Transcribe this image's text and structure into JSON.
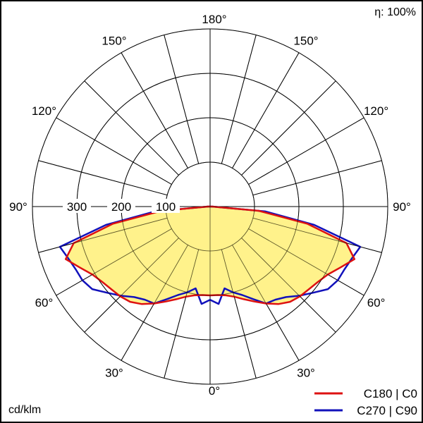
{
  "chart_data": {
    "type": "polar",
    "unit_label": "cd/klm",
    "efficiency_label": "η: 100%",
    "radial_ticks": [
      100,
      200,
      300
    ],
    "rlim": [
      0,
      400
    ],
    "angle_labels": {
      "top": "180°",
      "left": [
        "150°",
        "120°",
        "90°",
        "60°",
        "30°"
      ],
      "right": [
        "150°",
        "120°",
        "90°",
        "60°",
        "30°"
      ],
      "bottom": "0°"
    },
    "grid": true,
    "legend_position": "bottom-right",
    "series": [
      {
        "name": "C180 | C0",
        "color": "#dd1111",
        "fill": "#fff077",
        "points": [
          [
            0,
            200
          ],
          [
            5,
            200
          ],
          [
            10,
            203
          ],
          [
            15,
            210
          ],
          [
            20,
            222
          ],
          [
            25,
            236
          ],
          [
            30,
            252
          ],
          [
            35,
            268
          ],
          [
            40,
            280
          ],
          [
            45,
            286
          ],
          [
            50,
            290
          ],
          [
            55,
            296
          ],
          [
            60,
            306
          ],
          [
            65,
            324
          ],
          [
            70,
            346
          ],
          [
            75,
            318
          ],
          [
            80,
            222
          ],
          [
            85,
            110
          ],
          [
            90,
            5
          ]
        ]
      },
      {
        "name": "C270 | C90",
        "color": "#1111bb",
        "points": [
          [
            0,
            210
          ],
          [
            5,
            220
          ],
          [
            10,
            187
          ],
          [
            15,
            200
          ],
          [
            20,
            212
          ],
          [
            25,
            230
          ],
          [
            30,
            252
          ],
          [
            35,
            256
          ],
          [
            40,
            266
          ],
          [
            45,
            284
          ],
          [
            50,
            302
          ],
          [
            55,
            324
          ],
          [
            60,
            332
          ],
          [
            65,
            334
          ],
          [
            70,
            340
          ],
          [
            75,
            350
          ],
          [
            80,
            238
          ],
          [
            85,
            125
          ],
          [
            90,
            5
          ]
        ]
      }
    ]
  },
  "legend": [
    {
      "label": "C180 | C0",
      "color": "#dd1111"
    },
    {
      "label": "C270 | C90",
      "color": "#1111bb"
    }
  ]
}
